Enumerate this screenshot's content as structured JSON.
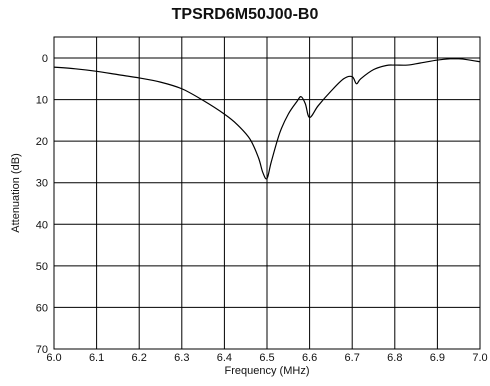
{
  "chart_data": {
    "type": "line",
    "title": "TPSRD6M50J00-B0",
    "xlabel": "Frequency  (MHz)",
    "ylabel": "Attenuation  (dB)",
    "xlim": [
      6.0,
      7.0
    ],
    "ylim": [
      0,
      70
    ],
    "y_inverted": true,
    "grid": true,
    "x_ticks": [
      "6.0",
      "6.1",
      "6.2",
      "6.3",
      "6.4",
      "6.5",
      "6.6",
      "6.7",
      "6.8",
      "6.9",
      "7.0"
    ],
    "y_ticks": [
      "0",
      "10",
      "20",
      "30",
      "40",
      "50",
      "60",
      "70"
    ],
    "series": [
      {
        "x": [
          6.0,
          6.05,
          6.1,
          6.15,
          6.2,
          6.25,
          6.3,
          6.35,
          6.4,
          6.43,
          6.46,
          6.48,
          6.49,
          6.5,
          6.51,
          6.53,
          6.55,
          6.57,
          6.58,
          6.59,
          6.6,
          6.62,
          6.65,
          6.68,
          6.7,
          6.71,
          6.72,
          6.75,
          6.78,
          6.8,
          6.83,
          6.86,
          6.9,
          6.93,
          6.95,
          6.97,
          7.0
        ],
        "y": [
          2.2,
          2.6,
          3.2,
          4.0,
          4.8,
          5.8,
          7.4,
          10.2,
          13.5,
          16.0,
          19.5,
          24.0,
          27.5,
          29.0,
          25.0,
          18.0,
          13.5,
          10.5,
          9.3,
          11.0,
          14.3,
          11.5,
          8.0,
          5.0,
          4.5,
          6.2,
          5.0,
          2.8,
          1.8,
          1.7,
          1.7,
          1.2,
          0.5,
          0.2,
          0.2,
          0.4,
          0.9
        ]
      }
    ]
  }
}
